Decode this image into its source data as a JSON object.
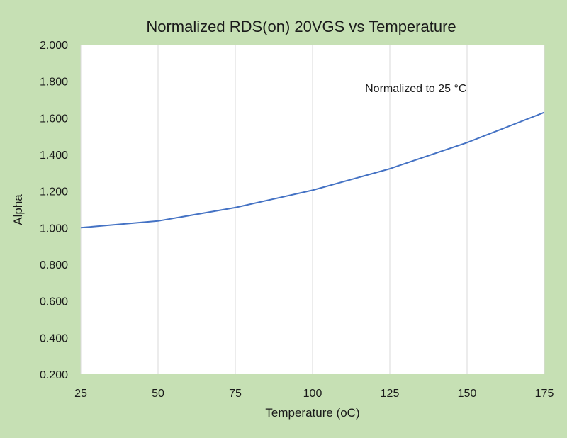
{
  "chart_data": {
    "type": "line",
    "title": "Normalized RDS(on) 20VGS vs Temperature",
    "xlabel": "Temperature (oC)",
    "ylabel": "Alpha",
    "x": [
      25,
      50,
      75,
      100,
      125,
      150,
      175
    ],
    "series": [
      {
        "values": [
          1.0,
          1.037,
          1.11,
          1.205,
          1.322,
          1.465,
          1.63
        ]
      }
    ],
    "xlim": [
      25,
      175
    ],
    "ylim": [
      0.2,
      2.0
    ],
    "x_ticks": [
      "25",
      "50",
      "75",
      "100",
      "125",
      "150",
      "175"
    ],
    "y_ticks": [
      "0.200",
      "0.400",
      "0.600",
      "0.800",
      "1.000",
      "1.200",
      "1.400",
      "1.600",
      "1.800",
      "2.000"
    ],
    "x_tick_values": [
      25,
      50,
      75,
      100,
      125,
      150,
      175
    ],
    "y_tick_values": [
      0.2,
      0.4,
      0.6,
      0.8,
      1.0,
      1.2,
      1.4,
      1.6,
      1.8,
      2.0
    ],
    "grid": "vertical",
    "annotation": {
      "text": "Normalized to 25 °C",
      "x": 117,
      "y": 1.74
    },
    "colors": {
      "background": "#c6e0b4",
      "plot": "#ffffff",
      "line": "#4472c4",
      "grid": "#d9d9d9"
    }
  }
}
